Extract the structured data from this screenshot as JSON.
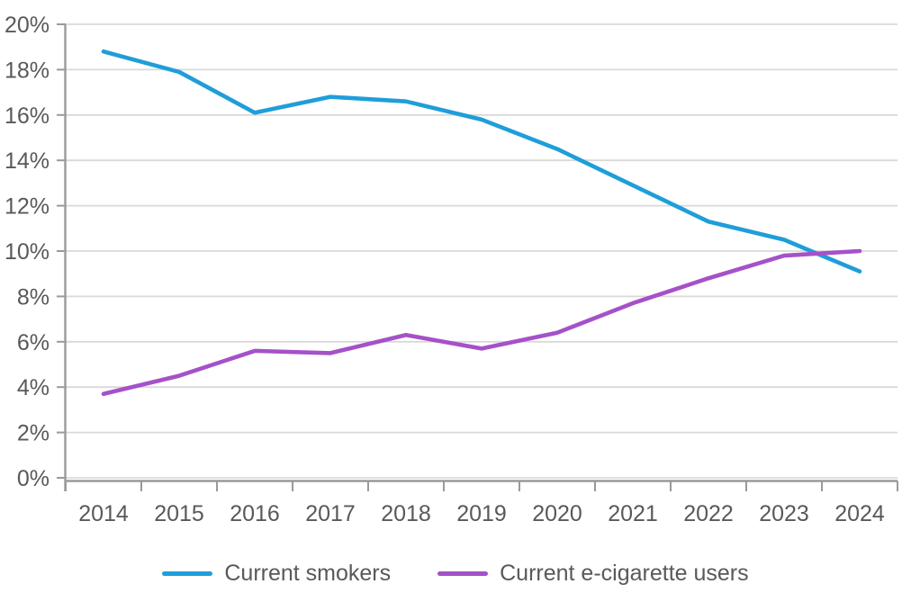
{
  "chart_data": {
    "type": "line",
    "categories": [
      "2014",
      "2015",
      "2016",
      "2017",
      "2018",
      "2019",
      "2020",
      "2021",
      "2022",
      "2023",
      "2024"
    ],
    "series": [
      {
        "name": "Current smokers",
        "color": "#1F9ED9",
        "values": [
          18.8,
          17.9,
          16.1,
          16.8,
          16.6,
          15.8,
          14.5,
          12.9,
          11.3,
          10.5,
          9.1
        ]
      },
      {
        "name": "Current e-cigarette users",
        "color": "#A551C8",
        "values": [
          3.7,
          4.5,
          5.6,
          5.5,
          6.3,
          5.7,
          6.4,
          7.7,
          8.8,
          9.8,
          10.0
        ]
      }
    ],
    "title": "",
    "xlabel": "",
    "ylabel": "",
    "ylim": [
      0,
      20
    ],
    "ytick_step": 2,
    "ytick_labels": [
      "0%",
      "2%",
      "4%",
      "6%",
      "8%",
      "10%",
      "12%",
      "14%",
      "16%",
      "18%",
      "20%"
    ],
    "grid": "horizontal",
    "legend_position": "bottom"
  },
  "colors": {
    "grid": "#D9D9D9",
    "axis": "#9A9A9A",
    "text": "#595959",
    "background": "#FFFFFF"
  }
}
